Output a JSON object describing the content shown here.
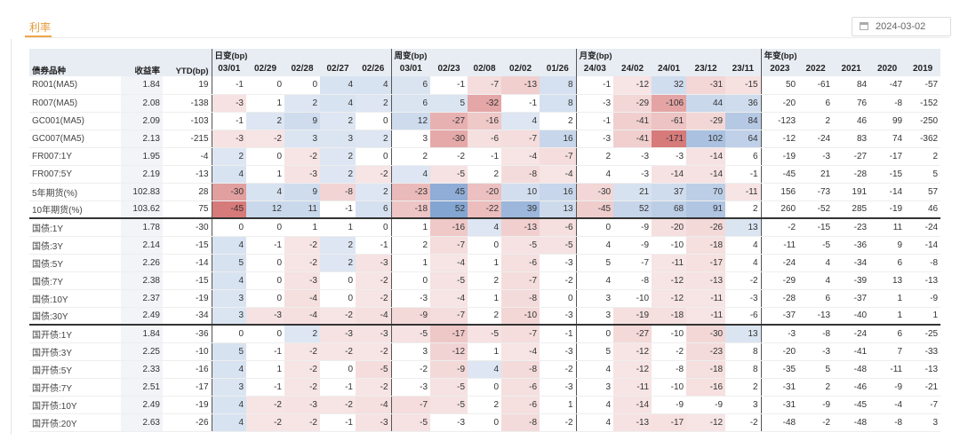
{
  "tab_label": "利率",
  "date_value": "2024-03-02",
  "headers": {
    "name": "债券品种",
    "yield": "收益率",
    "ytd": "YTD(bp)",
    "daily": "日变(bp)",
    "weekly": "周变(bp)",
    "monthly": "月变(bp)",
    "yearly": "年变(bp)",
    "daily_cols": [
      "03/01",
      "02/29",
      "02/28",
      "02/27",
      "02/26"
    ],
    "weekly_cols": [
      "03/01",
      "02/23",
      "02/08",
      "02/02",
      "01/26"
    ],
    "monthly_cols": [
      "24/03",
      "24/02",
      "24/01",
      "23/12",
      "23/11"
    ],
    "yearly_cols": [
      "2023",
      "2022",
      "2021",
      "2020",
      "2019"
    ]
  },
  "rows": [
    {
      "name": "R001(MA5)",
      "yield": "1.84",
      "ytd": "19",
      "daily": [
        "-1",
        "0",
        "0",
        "4",
        "4"
      ],
      "weekly": [
        "6",
        "-1",
        "-7",
        "-13",
        "8"
      ],
      "monthly": [
        "-1",
        "-12",
        "32",
        "-31",
        "-15"
      ],
      "yearly": [
        "50",
        "-61",
        "84",
        "-47",
        "-57"
      ]
    },
    {
      "name": "R007(MA5)",
      "yield": "2.08",
      "ytd": "-138",
      "daily": [
        "-3",
        "1",
        "2",
        "4",
        "2"
      ],
      "weekly": [
        "6",
        "5",
        "-32",
        "-1",
        "8"
      ],
      "monthly": [
        "-3",
        "-29",
        "-106",
        "44",
        "36"
      ],
      "yearly": [
        "-20",
        "6",
        "76",
        "-8",
        "-152"
      ]
    },
    {
      "name": "GC001(MA5)",
      "yield": "2.09",
      "ytd": "-103",
      "daily": [
        "-1",
        "2",
        "9",
        "2",
        "0"
      ],
      "weekly": [
        "12",
        "-27",
        "-16",
        "4",
        "2"
      ],
      "monthly": [
        "-1",
        "-41",
        "-61",
        "-29",
        "84"
      ],
      "yearly": [
        "-123",
        "2",
        "46",
        "99",
        "-250"
      ]
    },
    {
      "name": "GC007(MA5)",
      "yield": "2.13",
      "ytd": "-215",
      "daily": [
        "-3",
        "-2",
        "3",
        "3",
        "2"
      ],
      "weekly": [
        "3",
        "-30",
        "-6",
        "-7",
        "16"
      ],
      "monthly": [
        "-3",
        "-41",
        "-171",
        "102",
        "64"
      ],
      "yearly": [
        "-12",
        "-24",
        "83",
        "74",
        "-362"
      ]
    },
    {
      "name": "FR007:1Y",
      "yield": "1.95",
      "ytd": "-4",
      "daily": [
        "2",
        "0",
        "-2",
        "2",
        "0"
      ],
      "weekly": [
        "2",
        "-2",
        "-1",
        "-4",
        "-7"
      ],
      "monthly": [
        "2",
        "-3",
        "-3",
        "-14",
        "6"
      ],
      "yearly": [
        "-19",
        "-3",
        "-27",
        "-17",
        "2"
      ]
    },
    {
      "name": "FR007:5Y",
      "yield": "2.19",
      "ytd": "-13",
      "daily": [
        "4",
        "1",
        "-3",
        "2",
        "-2"
      ],
      "weekly": [
        "4",
        "-5",
        "2",
        "-8",
        "-4"
      ],
      "monthly": [
        "4",
        "-3",
        "-14",
        "-14",
        "-1"
      ],
      "yearly": [
        "-45",
        "21",
        "-28",
        "-15",
        "5"
      ]
    },
    {
      "name": "5年期货(%)",
      "yield": "102.83",
      "ytd": "28",
      "daily": [
        "-30",
        "4",
        "9",
        "-8",
        "2"
      ],
      "weekly": [
        "-23",
        "45",
        "-20",
        "10",
        "16"
      ],
      "monthly": [
        "-30",
        "21",
        "37",
        "70",
        "-11"
      ],
      "yearly": [
        "156",
        "-73",
        "191",
        "-14",
        "57"
      ]
    },
    {
      "name": "10年期货(%)",
      "yield": "103.62",
      "ytd": "75",
      "daily": [
        "-45",
        "12",
        "11",
        "-1",
        "6"
      ],
      "weekly": [
        "-18",
        "52",
        "-22",
        "39",
        "13"
      ],
      "monthly": [
        "-45",
        "52",
        "68",
        "91",
        "2"
      ],
      "yearly": [
        "260",
        "-52",
        "285",
        "-19",
        "46"
      ]
    },
    {
      "name": "国债:1Y",
      "yield": "1.78",
      "ytd": "-30",
      "daily": [
        "0",
        "0",
        "1",
        "1",
        "0"
      ],
      "weekly": [
        "1",
        "-16",
        "4",
        "-13",
        "-6"
      ],
      "monthly": [
        "0",
        "-9",
        "-20",
        "-26",
        "13"
      ],
      "yearly": [
        "-2",
        "-15",
        "-23",
        "11",
        "-24"
      ]
    },
    {
      "name": "国债:3Y",
      "yield": "2.14",
      "ytd": "-15",
      "daily": [
        "4",
        "-1",
        "-2",
        "2",
        "-1"
      ],
      "weekly": [
        "2",
        "-7",
        "0",
        "-5",
        "-5"
      ],
      "monthly": [
        "4",
        "-9",
        "-10",
        "-18",
        "4"
      ],
      "yearly": [
        "-11",
        "-5",
        "-36",
        "9",
        "-14"
      ]
    },
    {
      "name": "国债:5Y",
      "yield": "2.26",
      "ytd": "-14",
      "daily": [
        "5",
        "0",
        "-2",
        "2",
        "-3"
      ],
      "weekly": [
        "1",
        "-4",
        "1",
        "-6",
        "-3"
      ],
      "monthly": [
        "5",
        "-7",
        "-11",
        "-17",
        "4"
      ],
      "yearly": [
        "-24",
        "4",
        "-34",
        "6",
        "-8"
      ]
    },
    {
      "name": "国债:7Y",
      "yield": "2.38",
      "ytd": "-15",
      "daily": [
        "4",
        "0",
        "-3",
        "0",
        "-2"
      ],
      "weekly": [
        "0",
        "-5",
        "2",
        "-7",
        "-2"
      ],
      "monthly": [
        "4",
        "-8",
        "-12",
        "-13",
        "-2"
      ],
      "yearly": [
        "-29",
        "4",
        "-39",
        "13",
        "-13"
      ]
    },
    {
      "name": "国债:10Y",
      "yield": "2.37",
      "ytd": "-19",
      "daily": [
        "3",
        "0",
        "-4",
        "0",
        "-2"
      ],
      "weekly": [
        "-3",
        "-4",
        "1",
        "-8",
        "0"
      ],
      "monthly": [
        "3",
        "-10",
        "-12",
        "-11",
        "-3"
      ],
      "yearly": [
        "-28",
        "6",
        "-37",
        "1",
        "-9"
      ]
    },
    {
      "name": "国债:30Y",
      "yield": "2.49",
      "ytd": "-34",
      "daily": [
        "3",
        "-3",
        "-4",
        "-2",
        "-4"
      ],
      "weekly": [
        "-9",
        "-7",
        "2",
        "-10",
        "-3"
      ],
      "monthly": [
        "3",
        "-19",
        "-18",
        "-11",
        "-6"
      ],
      "yearly": [
        "-37",
        "-13",
        "-40",
        "1",
        "1"
      ]
    },
    {
      "name": "国开债:1Y",
      "yield": "1.84",
      "ytd": "-36",
      "daily": [
        "0",
        "0",
        "2",
        "-3",
        "-3"
      ],
      "weekly": [
        "-5",
        "-17",
        "-5",
        "-7",
        "-1"
      ],
      "monthly": [
        "0",
        "-27",
        "-10",
        "-30",
        "13"
      ],
      "yearly": [
        "-3",
        "-8",
        "-24",
        "6",
        "-25"
      ]
    },
    {
      "name": "国开债:3Y",
      "yield": "2.25",
      "ytd": "-10",
      "daily": [
        "5",
        "-1",
        "-2",
        "-2",
        "-2"
      ],
      "weekly": [
        "3",
        "-12",
        "1",
        "-4",
        "-3"
      ],
      "monthly": [
        "5",
        "-12",
        "-2",
        "-23",
        "8"
      ],
      "yearly": [
        "-20",
        "-3",
        "-41",
        "7",
        "-33"
      ]
    },
    {
      "name": "国开债:5Y",
      "yield": "2.33",
      "ytd": "-16",
      "daily": [
        "4",
        "1",
        "-2",
        "0",
        "-5"
      ],
      "weekly": [
        "-2",
        "-9",
        "4",
        "-8",
        "-2"
      ],
      "monthly": [
        "4",
        "-12",
        "-8",
        "-18",
        "8"
      ],
      "yearly": [
        "-35",
        "5",
        "-48",
        "-11",
        "-13"
      ]
    },
    {
      "name": "国开债:7Y",
      "yield": "2.51",
      "ytd": "-17",
      "daily": [
        "3",
        "-1",
        "-2",
        "-1",
        "-2"
      ],
      "weekly": [
        "-3",
        "-5",
        "0",
        "-6",
        "-3"
      ],
      "monthly": [
        "3",
        "-11",
        "-10",
        "-16",
        "2"
      ],
      "yearly": [
        "-31",
        "2",
        "-46",
        "-9",
        "-21"
      ]
    },
    {
      "name": "国开债:10Y",
      "yield": "2.49",
      "ytd": "-19",
      "daily": [
        "4",
        "-2",
        "-3",
        "-2",
        "-4"
      ],
      "weekly": [
        "-7",
        "-5",
        "2",
        "-6",
        "1"
      ],
      "monthly": [
        "4",
        "-14",
        "-9",
        "-9",
        "3"
      ],
      "yearly": [
        "-31",
        "-9",
        "-45",
        "-4",
        "-7"
      ]
    },
    {
      "name": "国开债:20Y",
      "yield": "2.63",
      "ytd": "-26",
      "daily": [
        "4",
        "-2",
        "-2",
        "-1",
        "-3"
      ],
      "weekly": [
        "-5",
        "-3",
        "0",
        "-8",
        "-2"
      ],
      "monthly": [
        "4",
        "-13",
        "-17",
        "-12",
        "-2"
      ],
      "yearly": [
        "-48",
        "-2",
        "-48",
        "-8",
        "3"
      ]
    }
  ]
}
